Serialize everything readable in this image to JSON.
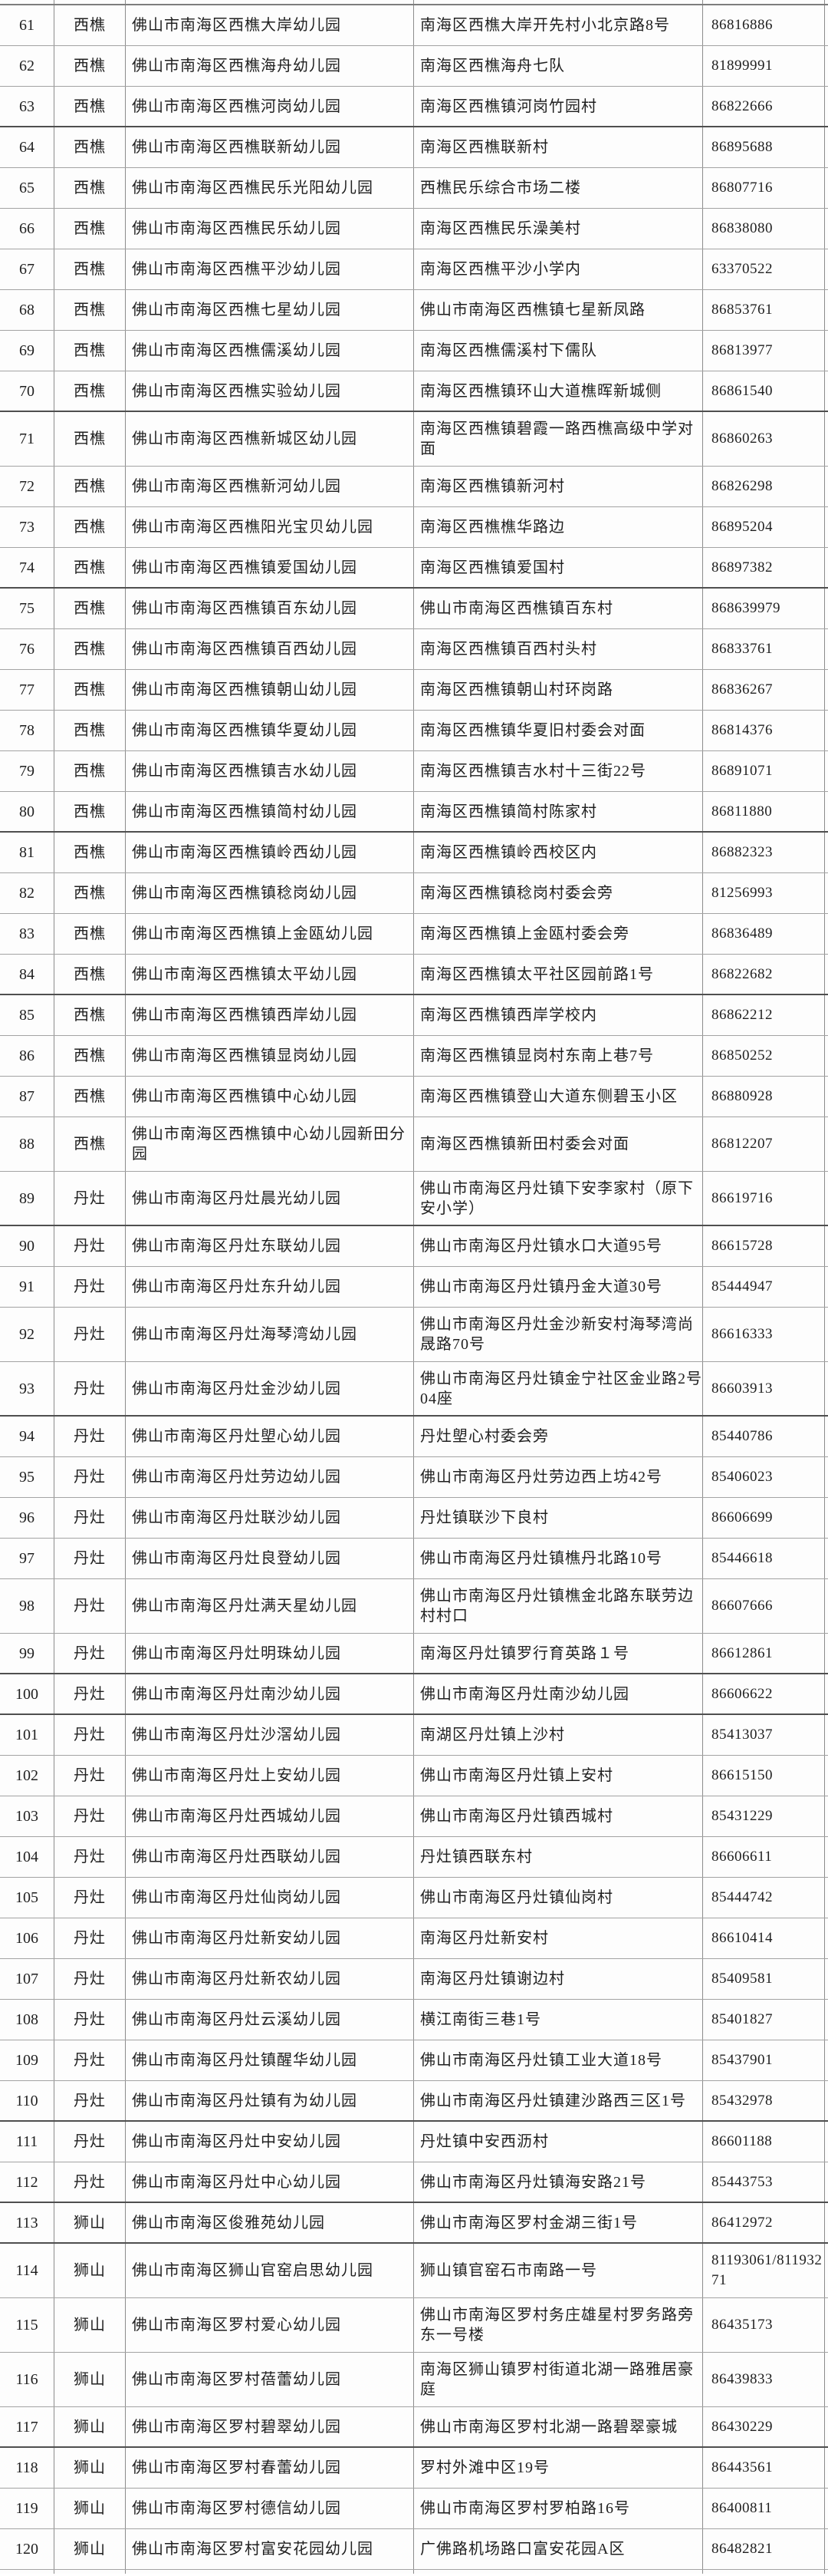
{
  "document": {
    "kind": "scanned table page, rows 61-120, no visible header"
  },
  "table": {
    "rows": [
      {
        "num": "61",
        "town": "西樵",
        "name": "佛山市南海区西樵大岸幼儿园",
        "address": "南海区西樵大岸开先村小北京路8号",
        "phone": "86816886"
      },
      {
        "num": "62",
        "town": "西樵",
        "name": "佛山市南海区西樵海舟幼儿园",
        "address": "南海区西樵海舟七队",
        "phone": "81899991"
      },
      {
        "num": "63",
        "town": "西樵",
        "name": "佛山市南海区西樵河岗幼儿园",
        "address": "南海区西樵镇河岗竹园村",
        "phone": "86822666",
        "dark": true
      },
      {
        "num": "64",
        "town": "西樵",
        "name": "佛山市南海区西樵联新幼儿园",
        "address": "南海区西樵联新村",
        "phone": "86895688"
      },
      {
        "num": "65",
        "town": "西樵",
        "name": "佛山市南海区西樵民乐光阳幼儿园",
        "address": "西樵民乐综合市场二楼",
        "phone": "86807716"
      },
      {
        "num": "66",
        "town": "西樵",
        "name": "佛山市南海区西樵民乐幼儿园",
        "address": "南海区西樵民乐澡美村",
        "phone": "86838080"
      },
      {
        "num": "67",
        "town": "西樵",
        "name": "佛山市南海区西樵平沙幼儿园",
        "address": "南海区西樵平沙小学内",
        "phone": "63370522"
      },
      {
        "num": "68",
        "town": "西樵",
        "name": "佛山市南海区西樵七星幼儿园",
        "address": "佛山市南海区西樵镇七星新凤路",
        "phone": "86853761"
      },
      {
        "num": "69",
        "town": "西樵",
        "name": "佛山市南海区西樵儒溪幼儿园",
        "address": "南海区西樵儒溪村下儒队",
        "phone": "86813977"
      },
      {
        "num": "70",
        "town": "西樵",
        "name": "佛山市南海区西樵实验幼儿园",
        "address": "南海区西樵镇环山大道樵晖新城侧",
        "phone": "86861540",
        "dark": true
      },
      {
        "num": "71",
        "town": "西樵",
        "name": "佛山市南海区西樵新城区幼儿园",
        "address": "南海区西樵镇碧霞一路西樵高级中学对面",
        "phone": "86860263",
        "tall": true
      },
      {
        "num": "72",
        "town": "西樵",
        "name": "佛山市南海区西樵新河幼儿园",
        "address": "南海区西樵镇新河村",
        "phone": "86826298"
      },
      {
        "num": "73",
        "town": "西樵",
        "name": "佛山市南海区西樵阳光宝贝幼儿园",
        "address": "南海区西樵樵华路边",
        "phone": "86895204"
      },
      {
        "num": "74",
        "town": "西樵",
        "name": "佛山市南海区西樵镇爱国幼儿园",
        "address": "南海区西樵镇爱国村",
        "phone": "86897382",
        "dark": true
      },
      {
        "num": "75",
        "town": "西樵",
        "name": "佛山市南海区西樵镇百东幼儿园",
        "address": "佛山市南海区西樵镇百东村",
        "phone": "868639979"
      },
      {
        "num": "76",
        "town": "西樵",
        "name": "佛山市南海区西樵镇百西幼儿园",
        "address": "南海区西樵镇百西村头村",
        "phone": "86833761"
      },
      {
        "num": "77",
        "town": "西樵",
        "name": "佛山市南海区西樵镇朝山幼儿园",
        "address": "南海区西樵镇朝山村环岗路",
        "phone": "86836267"
      },
      {
        "num": "78",
        "town": "西樵",
        "name": "佛山市南海区西樵镇华夏幼儿园",
        "address": "南海区西樵镇华夏旧村委会对面",
        "phone": "86814376"
      },
      {
        "num": "79",
        "town": "西樵",
        "name": "佛山市南海区西樵镇吉水幼儿园",
        "address": "南海区西樵镇吉水村十三街22号",
        "phone": "86891071"
      },
      {
        "num": "80",
        "town": "西樵",
        "name": "佛山市南海区西樵镇简村幼儿园",
        "address": "南海区西樵镇简村陈家村",
        "phone": "86811880",
        "dark": true
      },
      {
        "num": "81",
        "town": "西樵",
        "name": "佛山市南海区西樵镇岭西幼儿园",
        "address": "南海区西樵镇岭西校区内",
        "phone": "86882323"
      },
      {
        "num": "82",
        "town": "西樵",
        "name": "佛山市南海区西樵镇稔岗幼儿园",
        "address": "南海区西樵镇稔岗村委会旁",
        "phone": "81256993"
      },
      {
        "num": "83",
        "town": "西樵",
        "name": "佛山市南海区西樵镇上金瓯幼儿园",
        "address": "南海区西樵镇上金瓯村委会旁",
        "phone": "86836489"
      },
      {
        "num": "84",
        "town": "西樵",
        "name": "佛山市南海区西樵镇太平幼儿园",
        "address": "南海区西樵镇太平社区园前路1号",
        "phone": "86822682",
        "dark": true
      },
      {
        "num": "85",
        "town": "西樵",
        "name": "佛山市南海区西樵镇西岸幼儿园",
        "address": "南海区西樵镇西岸学校内",
        "phone": "86862212"
      },
      {
        "num": "86",
        "town": "西樵",
        "name": "佛山市南海区西樵镇显岗幼儿园",
        "address": "南海区西樵镇显岗村东南上巷7号",
        "phone": "86850252"
      },
      {
        "num": "87",
        "town": "西樵",
        "name": "佛山市南海区西樵镇中心幼儿园",
        "address": "南海区西樵镇登山大道东侧碧玉小区",
        "phone": "86880928"
      },
      {
        "num": "88",
        "town": "西樵",
        "name": "佛山市南海区西樵镇中心幼儿园新田分园",
        "address": "南海区西樵镇新田村委会对面",
        "phone": "86812207",
        "tall": true
      },
      {
        "num": "89",
        "town": "丹灶",
        "name": "佛山市南海区丹灶晨光幼儿园",
        "address": "佛山市南海区丹灶镇下安李家村（原下安小学）",
        "phone": "86619716",
        "tall": true,
        "dark": true
      },
      {
        "num": "90",
        "town": "丹灶",
        "name": "佛山市南海区丹灶东联幼儿园",
        "address": "佛山市南海区丹灶镇水口大道95号",
        "phone": "86615728"
      },
      {
        "num": "91",
        "town": "丹灶",
        "name": "佛山市南海区丹灶东升幼儿园",
        "address": "佛山市南海区丹灶镇丹金大道30号",
        "phone": "85444947"
      },
      {
        "num": "92",
        "town": "丹灶",
        "name": "佛山市南海区丹灶海琴湾幼儿园",
        "address": "佛山市南海区丹灶金沙新安村海琴湾尚晟路70号",
        "phone": "86616333",
        "tall": true
      },
      {
        "num": "93",
        "town": "丹灶",
        "name": "佛山市南海区丹灶金沙幼儿园",
        "address": "佛山市南海区丹灶镇金宁社区金业路2号04座",
        "phone": "86603913",
        "tall": true,
        "dark": true
      },
      {
        "num": "94",
        "town": "丹灶",
        "name": "佛山市南海区丹灶塱心幼儿园",
        "address": "丹灶塱心村委会旁",
        "phone": "85440786"
      },
      {
        "num": "95",
        "town": "丹灶",
        "name": "佛山市南海区丹灶劳边幼儿园",
        "address": "佛山市南海区丹灶劳边西上坊42号",
        "phone": "85406023"
      },
      {
        "num": "96",
        "town": "丹灶",
        "name": "佛山市南海区丹灶联沙幼儿园",
        "address": "丹灶镇联沙下良村",
        "phone": "86606699"
      },
      {
        "num": "97",
        "town": "丹灶",
        "name": "佛山市南海区丹灶良登幼儿园",
        "address": "佛山市南海区丹灶镇樵丹北路10号",
        "phone": "85446618"
      },
      {
        "num": "98",
        "town": "丹灶",
        "name": "佛山市南海区丹灶满天星幼儿园",
        "address": "佛山市南海区丹灶镇樵金北路东联劳边村村口",
        "phone": "86607666",
        "tall": true
      },
      {
        "num": "99",
        "town": "丹灶",
        "name": "佛山市南海区丹灶明珠幼儿园",
        "address": "南海区丹灶镇罗行育英路１号",
        "phone": "86612861",
        "dark": true
      },
      {
        "num": "100",
        "town": "丹灶",
        "name": "佛山市南海区丹灶南沙幼儿园",
        "address": "佛山市南海区丹灶南沙幼儿园",
        "phone": "86606622",
        "dark": true
      },
      {
        "num": "101",
        "town": "丹灶",
        "name": "佛山市南海区丹灶沙滘幼儿园",
        "address": "南湖区丹灶镇上沙村",
        "phone": "85413037"
      },
      {
        "num": "102",
        "town": "丹灶",
        "name": "佛山市南海区丹灶上安幼儿园",
        "address": "佛山市南海区丹灶镇上安村",
        "phone": "86615150"
      },
      {
        "num": "103",
        "town": "丹灶",
        "name": "佛山市南海区丹灶西城幼儿园",
        "address": "佛山市南海区丹灶镇西城村",
        "phone": "85431229"
      },
      {
        "num": "104",
        "town": "丹灶",
        "name": "佛山市南海区丹灶西联幼儿园",
        "address": "丹灶镇西联东村",
        "phone": "86606611"
      },
      {
        "num": "105",
        "town": "丹灶",
        "name": "佛山市南海区丹灶仙岗幼儿园",
        "address": "佛山市南海区丹灶镇仙岗村",
        "phone": "85444742"
      },
      {
        "num": "106",
        "town": "丹灶",
        "name": "佛山市南海区丹灶新安幼儿园",
        "address": "南海区丹灶新安村",
        "phone": "86610414"
      },
      {
        "num": "107",
        "town": "丹灶",
        "name": "佛山市南海区丹灶新农幼儿园",
        "address": "南海区丹灶镇谢边村",
        "phone": "85409581"
      },
      {
        "num": "108",
        "town": "丹灶",
        "name": "佛山市南海区丹灶云溪幼儿园",
        "address": "横江南街三巷1号",
        "phone": "85401827"
      },
      {
        "num": "109",
        "town": "丹灶",
        "name": "佛山市南海区丹灶镇醒华幼儿园",
        "address": "佛山市南海区丹灶镇工业大道18号",
        "phone": "85437901"
      },
      {
        "num": "110",
        "town": "丹灶",
        "name": "佛山市南海区丹灶镇有为幼儿园",
        "address": "佛山市南海区丹灶镇建沙路西三区1号",
        "phone": "85432978",
        "dark": true
      },
      {
        "num": "111",
        "town": "丹灶",
        "name": "佛山市南海区丹灶中安幼儿园",
        "address": "丹灶镇中安西沥村",
        "phone": "86601188"
      },
      {
        "num": "112",
        "town": "丹灶",
        "name": "佛山市南海区丹灶中心幼儿园",
        "address": "佛山市南海区丹灶镇海安路21号",
        "phone": "85443753",
        "dark": true
      },
      {
        "num": "113",
        "town": "狮山",
        "name": "佛山市南海区俊雅苑幼儿园",
        "address": "佛山市南海区罗村金湖三街1号",
        "phone": "86412972",
        "dark": true
      },
      {
        "num": "114",
        "town": "狮山",
        "name": "佛山市南海区狮山官窑启思幼儿园",
        "address": "狮山镇官窑石市南路一号",
        "phone": "81193061/81193271",
        "tall": true
      },
      {
        "num": "115",
        "town": "狮山",
        "name": "佛山市南海区罗村爱心幼儿园",
        "address": "佛山市南海区罗村务庄雄星村罗务路旁东一号楼",
        "phone": "86435173",
        "tall": true
      },
      {
        "num": "116",
        "town": "狮山",
        "name": "佛山市南海区罗村蓓蕾幼儿园",
        "address": "南海区狮山镇罗村街道北湖一路雅居豪庭",
        "phone": "86439833",
        "tall": true
      },
      {
        "num": "117",
        "town": "狮山",
        "name": "佛山市南海区罗村碧翠幼儿园",
        "address": "佛山市南海区罗村北湖一路碧翠豪城",
        "phone": "86430229",
        "dark": true
      },
      {
        "num": "118",
        "town": "狮山",
        "name": "佛山市南海区罗村春蕾幼儿园",
        "address": "罗村外滩中区19号",
        "phone": "86443561"
      },
      {
        "num": "119",
        "town": "狮山",
        "name": "佛山市南海区罗村德信幼儿园",
        "address": "佛山市南海区罗村罗柏路16号",
        "phone": "86400811"
      },
      {
        "num": "120",
        "town": "狮山",
        "name": "佛山市南海区罗村富安花园幼儿园",
        "address": "广佛路机场路口富安花园A区",
        "phone": "86482821"
      }
    ]
  },
  "colors": {
    "text": "#1f1f1f",
    "grid_line": "#8c8c8c",
    "grid_line_light": "#a3a3a3",
    "grid_line_dark": "#4f4f4f",
    "background": "#ffffff"
  }
}
